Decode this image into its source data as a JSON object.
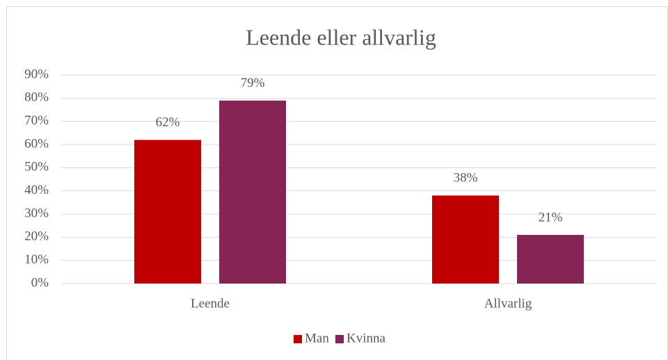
{
  "chart_data": {
    "type": "bar",
    "title": "Leende eller allvarlig",
    "categories": [
      "Leende",
      "Allvarlig"
    ],
    "series": [
      {
        "name": "Man",
        "color": "#c00000",
        "values": [
          62,
          38
        ],
        "value_labels": [
          "62%",
          "38%"
        ]
      },
      {
        "name": "Kvinna",
        "color": "#862455",
        "values": [
          79,
          21
        ],
        "value_labels": [
          "79%",
          "21%"
        ]
      }
    ],
    "ylim": [
      0,
      90
    ],
    "yticks": [
      {
        "value": 0,
        "label": "0%"
      },
      {
        "value": 10,
        "label": "10%"
      },
      {
        "value": 20,
        "label": "20%"
      },
      {
        "value": 30,
        "label": "30%"
      },
      {
        "value": 40,
        "label": "40%"
      },
      {
        "value": 50,
        "label": "50%"
      },
      {
        "value": 60,
        "label": "60%"
      },
      {
        "value": 70,
        "label": "70%"
      },
      {
        "value": 80,
        "label": "80%"
      },
      {
        "value": 90,
        "label": "90%"
      }
    ],
    "grid": true,
    "legend": "bottom"
  }
}
